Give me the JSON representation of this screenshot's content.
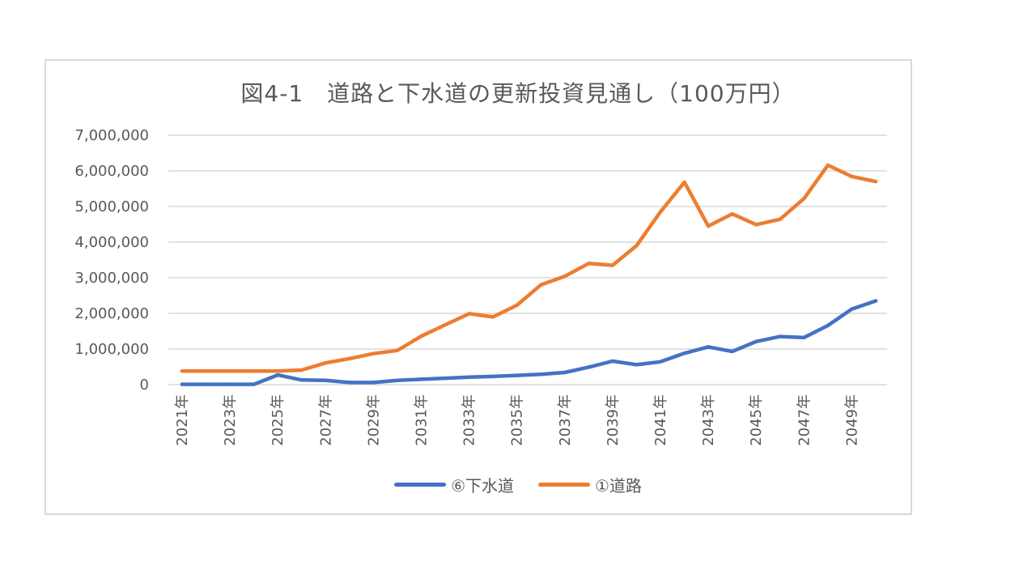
{
  "colors": {
    "sewer": "#4472c4",
    "road": "#ed7d31",
    "grid": "#d9d9d9",
    "text": "#595959"
  },
  "chart_data": {
    "type": "line",
    "title": "図4-1　道路と下水道の更新投資見通し（100万円）",
    "xlabel": "",
    "ylabel": "",
    "ylim": [
      0,
      7000000
    ],
    "yticks": [
      0,
      1000000,
      2000000,
      3000000,
      4000000,
      5000000,
      6000000,
      7000000
    ],
    "ytick_labels": [
      "0",
      "1,000,000",
      "2,000,000",
      "3,000,000",
      "4,000,000",
      "5,000,000",
      "6,000,000",
      "7,000,000"
    ],
    "x": [
      2021,
      2022,
      2023,
      2024,
      2025,
      2026,
      2027,
      2028,
      2029,
      2030,
      2031,
      2032,
      2033,
      2034,
      2035,
      2036,
      2037,
      2038,
      2039,
      2040,
      2041,
      2042,
      2043,
      2044,
      2045,
      2046,
      2047,
      2048,
      2049,
      2050
    ],
    "xtick_labels": [
      "2021年",
      "2023年",
      "2025年",
      "2027年",
      "2029年",
      "2031年",
      "2033年",
      "2035年",
      "2037年",
      "2039年",
      "2041年",
      "2043年",
      "2045年",
      "2047年",
      "2049年"
    ],
    "xtick_years": [
      2021,
      2023,
      2025,
      2027,
      2029,
      2031,
      2033,
      2035,
      2037,
      2039,
      2041,
      2043,
      2045,
      2047,
      2049
    ],
    "grid": true,
    "legend_position": "bottom",
    "series": [
      {
        "name": "⑥下水道",
        "key": "sewer",
        "values": [
          10000,
          10000,
          10000,
          10000,
          270000,
          130000,
          120000,
          60000,
          60000,
          120000,
          150000,
          180000,
          210000,
          230000,
          260000,
          290000,
          340000,
          490000,
          660000,
          560000,
          640000,
          880000,
          1060000,
          930000,
          1210000,
          1350000,
          1320000,
          1660000,
          2120000,
          2350000
        ]
      },
      {
        "name": "①道路",
        "key": "road",
        "values": [
          380000,
          380000,
          380000,
          380000,
          380000,
          410000,
          610000,
          730000,
          870000,
          960000,
          1360000,
          1680000,
          1990000,
          1900000,
          2230000,
          2800000,
          3040000,
          3400000,
          3350000,
          3900000,
          4850000,
          5680000,
          4450000,
          4790000,
          4490000,
          4640000,
          5220000,
          6160000,
          5840000,
          5700000
        ]
      }
    ]
  }
}
